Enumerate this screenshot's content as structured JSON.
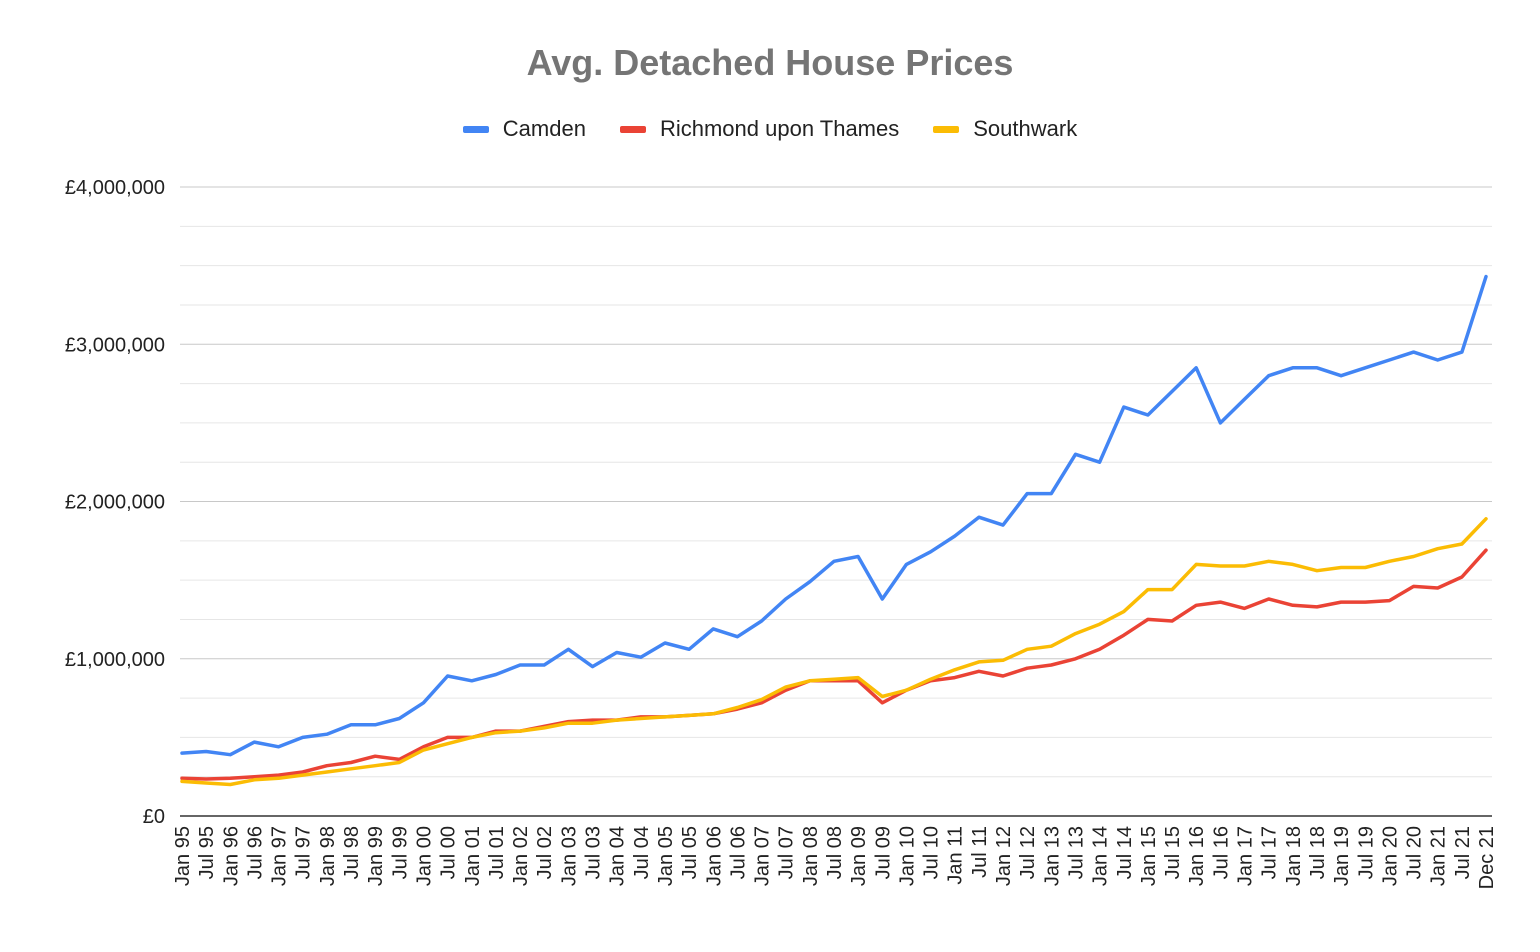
{
  "chart_data": {
    "type": "line",
    "title": "Avg. Detached House Prices",
    "xlabel": "",
    "ylabel": "",
    "ylim": [
      0,
      4000000
    ],
    "y_ticks": [
      {
        "value": 0,
        "label": "£0"
      },
      {
        "value": 1000000,
        "label": "£1,000,000"
      },
      {
        "value": 2000000,
        "label": "£2,000,000"
      },
      {
        "value": 3000000,
        "label": "£3,000,000"
      },
      {
        "value": 4000000,
        "label": "£4,000,000"
      }
    ],
    "minor_gridlines": true,
    "legend_position": "top",
    "x_ticks": [
      "Jan 95",
      "Jul 95",
      "Jan 96",
      "Jul 96",
      "Jan 97",
      "Jul 97",
      "Jan 98",
      "Jul 98",
      "Jan 99",
      "Jul 99",
      "Jan 00",
      "Jul 00",
      "Jan 01",
      "Jul 01",
      "Jan 02",
      "Jul 02",
      "Jan 03",
      "Jul 03",
      "Jan 04",
      "Jul 04",
      "Jan 05",
      "Jul 05",
      "Jan 06",
      "Jul 06",
      "Jan 07",
      "Jul 07",
      "Jan 08",
      "Jul 08",
      "Jan 09",
      "Jul 09",
      "Jan 10",
      "Jul 10",
      "Jan 11",
      "Jul 11",
      "Jan 12",
      "Jul 12",
      "Jan 13",
      "Jul 13",
      "Jan 14",
      "Jul 14",
      "Jan 15",
      "Jul 15",
      "Jan 16",
      "Jul 16",
      "Jan 17",
      "Jul 17",
      "Jan 18",
      "Jul 18",
      "Jan 19",
      "Jul 19",
      "Jan 20",
      "Jul 20",
      "Jan 21",
      "Jul 21",
      "Dec 21"
    ],
    "x_note": "monthly points from Jan 95 to Dec 21; values below are sampled at the labelled dates",
    "series": [
      {
        "name": "Camden",
        "color": "#4285f4",
        "values": [
          400000,
          410000,
          390000,
          470000,
          440000,
          500000,
          520000,
          580000,
          580000,
          620000,
          720000,
          890000,
          860000,
          900000,
          960000,
          960000,
          1060000,
          950000,
          1040000,
          1010000,
          1100000,
          1060000,
          1190000,
          1140000,
          1240000,
          1380000,
          1490000,
          1620000,
          1650000,
          1380000,
          1600000,
          1680000,
          1780000,
          1900000,
          1850000,
          2050000,
          2050000,
          2300000,
          2250000,
          2600000,
          2550000,
          2700000,
          2850000,
          2500000,
          2650000,
          2800000,
          2850000,
          2850000,
          2800000,
          2850000,
          2900000,
          2950000,
          2900000,
          2950000,
          3430000
        ]
      },
      {
        "name": "Richmond upon Thames",
        "color": "#ea4335",
        "values": [
          240000,
          235000,
          240000,
          250000,
          260000,
          280000,
          320000,
          340000,
          380000,
          360000,
          440000,
          500000,
          500000,
          540000,
          540000,
          570000,
          600000,
          610000,
          610000,
          630000,
          630000,
          640000,
          650000,
          680000,
          720000,
          800000,
          860000,
          860000,
          860000,
          720000,
          800000,
          860000,
          880000,
          920000,
          890000,
          940000,
          960000,
          1000000,
          1060000,
          1150000,
          1250000,
          1240000,
          1340000,
          1360000,
          1320000,
          1380000,
          1340000,
          1330000,
          1360000,
          1360000,
          1370000,
          1460000,
          1450000,
          1520000,
          1690000
        ]
      },
      {
        "name": "Southwark",
        "color": "#fbbc04",
        "values": [
          220000,
          210000,
          200000,
          230000,
          240000,
          260000,
          280000,
          300000,
          320000,
          340000,
          420000,
          460000,
          500000,
          530000,
          540000,
          560000,
          590000,
          590000,
          610000,
          620000,
          630000,
          640000,
          650000,
          690000,
          740000,
          820000,
          860000,
          870000,
          880000,
          760000,
          800000,
          870000,
          930000,
          980000,
          990000,
          1060000,
          1080000,
          1160000,
          1220000,
          1300000,
          1440000,
          1440000,
          1600000,
          1590000,
          1590000,
          1620000,
          1600000,
          1560000,
          1580000,
          1580000,
          1620000,
          1650000,
          1700000,
          1730000,
          1890000
        ]
      }
    ]
  }
}
